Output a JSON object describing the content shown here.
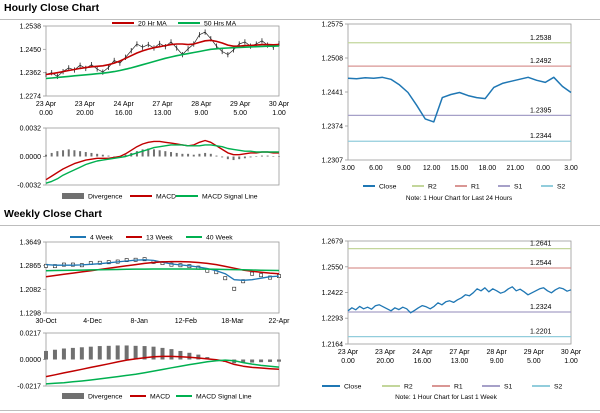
{
  "sections": {
    "hourly_title": "Hourly Close Chart",
    "weekly_title": "Weekly Close Chart"
  },
  "colors": {
    "ma_red": "#c00000",
    "ma_green": "#00b050",
    "price_black": "#222222",
    "blue_line": "#1f77b4",
    "macd_red": "#c00000",
    "signal_green": "#00b050",
    "bar_gray": "#707070",
    "r2": "#c3d69b",
    "r1": "#d99694",
    "s1": "#a6a0c8",
    "s2": "#92cddc",
    "frame": "#9a9a9a"
  },
  "chart_data": [
    {
      "id": "hourly-price",
      "type": "line",
      "title": "Hourly Close Chart",
      "legend": [
        "20 Hr MA",
        "50 Hrs MA"
      ],
      "y_ticks": [
        "1.2538",
        "1.2450",
        "1.2362",
        "1.2274"
      ],
      "ylim": [
        1.2274,
        1.2538
      ],
      "x_ticks": [
        "23 Apr\n0.00",
        "23 Apr\n20.00",
        "24 Apr\n16.00",
        "27 Apr\n13.00",
        "28 Apr\n9.00",
        "29 Apr\n5.00",
        "30 Apr\n1.00"
      ],
      "series": [
        {
          "name": "Price",
          "values": [
            1.2355,
            1.2362,
            1.2348,
            1.2366,
            1.238,
            1.2372,
            1.239,
            1.2378,
            1.2392,
            1.2376,
            1.2364,
            1.2382,
            1.2408,
            1.2398,
            1.242,
            1.2445,
            1.247,
            1.2458,
            1.2468,
            1.2455,
            1.2472,
            1.246,
            1.2478,
            1.2455,
            1.243,
            1.2452,
            1.247,
            1.2505,
            1.2515,
            1.249,
            1.2462,
            1.2442,
            1.243,
            1.2448,
            1.247,
            1.2478,
            1.2462,
            1.247,
            1.2482,
            1.2466,
            1.2458,
            1.2472
          ]
        },
        {
          "name": "20 Hr MA",
          "values": [
            1.2355,
            1.2358,
            1.2362,
            1.2366,
            1.237,
            1.2374,
            1.2378,
            1.2381,
            1.2384,
            1.2386,
            1.2388,
            1.2392,
            1.2398,
            1.2406,
            1.2416,
            1.2426,
            1.2436,
            1.2444,
            1.2451,
            1.2456,
            1.246,
            1.2464,
            1.2468,
            1.247,
            1.247,
            1.2468,
            1.247,
            1.2476,
            1.2482,
            1.2484,
            1.248,
            1.2474,
            1.2466,
            1.2462,
            1.2462,
            1.2464,
            1.2465,
            1.2466,
            1.2468,
            1.2468,
            1.2467,
            1.2468
          ]
        },
        {
          "name": "50 Hrs MA",
          "values": [
            1.234,
            1.2342,
            1.2344,
            1.2346,
            1.2348,
            1.235,
            1.2352,
            1.2354,
            1.2356,
            1.2358,
            1.236,
            1.2363,
            1.2366,
            1.237,
            1.2375,
            1.238,
            1.2386,
            1.2392,
            1.2398,
            1.2404,
            1.241,
            1.2416,
            1.2421,
            1.2426,
            1.243,
            1.2434,
            1.2438,
            1.2442,
            1.2446,
            1.245,
            1.2452,
            1.2454,
            1.2455,
            1.2456,
            1.2457,
            1.2458,
            1.2459,
            1.246,
            1.2461,
            1.2462,
            1.2462,
            1.2463
          ]
        }
      ]
    },
    {
      "id": "hourly-macd",
      "type": "bar",
      "y_ticks": [
        "0.0032",
        "0.0000",
        "-0.0032"
      ],
      "ylim": [
        -0.0032,
        0.0032
      ],
      "legend": [
        "Divergence",
        "MACD",
        "MACD Signal Line"
      ],
      "divergence": [
        0.0002,
        0.0004,
        0.0006,
        0.0007,
        0.0008,
        0.0007,
        0.0006,
        0.0005,
        0.0004,
        0.0003,
        0.0002,
        0.0001,
        0.0,
        -0.0001,
        0.0002,
        0.0004,
        0.0006,
        0.0008,
        0.0009,
        0.0008,
        0.0007,
        0.0006,
        0.0005,
        0.0004,
        0.0003,
        0.0003,
        0.0002,
        0.0003,
        0.0004,
        0.0003,
        0.0001,
        -0.0001,
        -0.0003,
        -0.0004,
        -0.0003,
        -0.0002,
        -0.0001,
        0.0,
        0.0001,
        0.0001,
        0.0,
        0.0
      ],
      "series": [
        {
          "name": "MACD",
          "values": [
            -0.0026,
            -0.0022,
            -0.0018,
            -0.0014,
            -0.0011,
            -0.0008,
            -0.0006,
            -0.0004,
            -0.0003,
            -0.0002,
            -0.0002,
            -0.0002,
            -0.0001,
            0.0,
            0.0003,
            0.0007,
            0.0011,
            0.0014,
            0.0016,
            0.0017,
            0.0017,
            0.0016,
            0.0015,
            0.0014,
            0.0013,
            0.0012,
            0.0013,
            0.0016,
            0.0018,
            0.0016,
            0.0012,
            0.0008,
            0.0004,
            0.0002,
            0.0002,
            0.0003,
            0.0004,
            0.0004,
            0.0005,
            0.0005,
            0.0004,
            0.0004
          ]
        },
        {
          "name": "MACD Signal Line",
          "values": [
            -0.003,
            -0.0028,
            -0.0025,
            -0.0021,
            -0.0018,
            -0.0015,
            -0.0012,
            -0.0009,
            -0.0007,
            -0.0005,
            -0.0004,
            -0.0003,
            -0.0002,
            -0.0001,
            0.0,
            0.0002,
            0.0004,
            0.0006,
            0.0008,
            0.001,
            0.0011,
            0.0012,
            0.0013,
            0.0013,
            0.0013,
            0.0012,
            0.0012,
            0.0012,
            0.0013,
            0.0013,
            0.0012,
            0.0011,
            0.0009,
            0.0008,
            0.0007,
            0.0006,
            0.0006,
            0.0005,
            0.0005,
            0.0005,
            0.0005,
            0.0005
          ]
        }
      ]
    },
    {
      "id": "hourly-close-24h",
      "type": "line",
      "y_ticks": [
        "1.2575",
        "1.2508",
        "1.2441",
        "1.2374",
        "1.2307"
      ],
      "ylim": [
        1.2307,
        1.2575
      ],
      "x_ticks": [
        "3.00",
        "6.00",
        "9.00",
        "12.00",
        "15.00",
        "18.00",
        "21.00",
        "0.00",
        "3.00"
      ],
      "levels": [
        {
          "name": "R2",
          "value": 1.2538,
          "label": "1.2538"
        },
        {
          "name": "R1",
          "value": 1.2492,
          "label": "1.2492"
        },
        {
          "name": "S1",
          "value": 1.2395,
          "label": "1.2395"
        },
        {
          "name": "S2",
          "value": 1.2344,
          "label": "1.2344"
        }
      ],
      "legend": [
        "Close",
        "R2",
        "R1",
        "S1",
        "S2"
      ],
      "note": "Note: 1 Hour Chart for Last 24 Hours",
      "series": [
        {
          "name": "Close",
          "values": [
            1.2468,
            1.2467,
            1.2469,
            1.2468,
            1.247,
            1.2466,
            1.2455,
            1.244,
            1.2415,
            1.2388,
            1.2382,
            1.243,
            1.2436,
            1.244,
            1.2434,
            1.243,
            1.2428,
            1.245,
            1.2458,
            1.2462,
            1.2466,
            1.247,
            1.2464,
            1.246,
            1.247,
            1.2452,
            1.244
          ]
        }
      ]
    },
    {
      "id": "weekly-price",
      "type": "line",
      "title": "Weekly Close Chart",
      "legend": [
        "4 Week",
        "13 Week",
        "40 Week"
      ],
      "y_ticks": [
        "1.3649",
        "1.2865",
        "1.2082",
        "1.1298"
      ],
      "ylim": [
        1.1298,
        1.3649
      ],
      "x_ticks": [
        "30-Oct",
        "4-Dec",
        "8-Jan",
        "12-Feb",
        "18-Mar",
        "22-Apr"
      ],
      "series": [
        {
          "name": "Price",
          "values": [
            1.286,
            1.285,
            1.29,
            1.29,
            1.288,
            1.295,
            1.296,
            1.298,
            1.3,
            1.305,
            1.306,
            1.308,
            1.299,
            1.295,
            1.29,
            1.288,
            1.285,
            1.28,
            1.27,
            1.265,
            1.245,
            1.21,
            1.235,
            1.26,
            1.255,
            1.247,
            1.252
          ]
        },
        {
          "name": "4 Week",
          "values": [
            1.29,
            1.288,
            1.288,
            1.288,
            1.289,
            1.291,
            1.293,
            1.296,
            1.299,
            1.302,
            1.305,
            1.306,
            1.304,
            1.298,
            1.292,
            1.289,
            1.286,
            1.282,
            1.277,
            1.27,
            1.26,
            1.24,
            1.238,
            1.24,
            1.245,
            1.25,
            1.252
          ]
        },
        {
          "name": "13 Week",
          "values": [
            1.25,
            1.254,
            1.258,
            1.262,
            1.266,
            1.27,
            1.274,
            1.278,
            1.282,
            1.286,
            1.29,
            1.294,
            1.297,
            1.299,
            1.3,
            1.3,
            1.299,
            1.297,
            1.294,
            1.29,
            1.284,
            1.278,
            1.272,
            1.268,
            1.265,
            1.262,
            1.26
          ]
        },
        {
          "name": "40 Week",
          "values": [
            1.27,
            1.2705,
            1.271,
            1.2715,
            1.272,
            1.2725,
            1.273,
            1.2735,
            1.274,
            1.2745,
            1.275,
            1.2752,
            1.2754,
            1.2755,
            1.2756,
            1.2756,
            1.2755,
            1.2753,
            1.275,
            1.2745,
            1.274,
            1.2734,
            1.2728,
            1.2722,
            1.2716,
            1.271,
            1.2705
          ]
        }
      ]
    },
    {
      "id": "weekly-macd",
      "type": "bar",
      "y_ticks": [
        "0.0217",
        "0.0000",
        "-0.0217"
      ],
      "ylim": [
        -0.0217,
        0.0217
      ],
      "legend": [
        "Divergence",
        "MACD",
        "MACD Signal Line"
      ],
      "divergence": [
        0.007,
        0.008,
        0.009,
        0.0095,
        0.01,
        0.0105,
        0.011,
        0.0112,
        0.0115,
        0.0115,
        0.0112,
        0.011,
        0.0105,
        0.0095,
        0.0085,
        0.007,
        0.0055,
        0.004,
        0.002,
        0.0,
        -0.002,
        -0.003,
        -0.0028,
        -0.0025,
        -0.0022,
        -0.002,
        -0.0018
      ],
      "series": [
        {
          "name": "MACD",
          "values": [
            -0.014,
            -0.0125,
            -0.011,
            -0.0095,
            -0.008,
            -0.0065,
            -0.005,
            -0.0035,
            -0.002,
            -0.0005,
            0.0005,
            0.0015,
            0.0022,
            0.0025,
            0.0025,
            0.0022,
            0.0018,
            0.0012,
            0.0005,
            -0.0002,
            -0.0015,
            -0.004,
            -0.0055,
            -0.0065,
            -0.007,
            -0.0075,
            -0.008
          ]
        },
        {
          "name": "MACD Signal Line",
          "values": [
            -0.02,
            -0.0195,
            -0.019,
            -0.0183,
            -0.0176,
            -0.0168,
            -0.0159,
            -0.015,
            -0.014,
            -0.013,
            -0.012,
            -0.0108,
            -0.0095,
            -0.0082,
            -0.0068,
            -0.0055,
            -0.0042,
            -0.003,
            -0.0018,
            -0.001,
            -0.0005,
            -0.001,
            -0.0025,
            -0.0038,
            -0.0048,
            -0.0055,
            -0.0062
          ]
        }
      ]
    },
    {
      "id": "weekly-close-1w",
      "type": "line",
      "y_ticks": [
        "1.2679",
        "1.2550",
        "1.2422",
        "1.2293",
        "1.2164"
      ],
      "ylim": [
        1.2164,
        1.2679
      ],
      "x_ticks": [
        "23 Apr\n0.00",
        "23 Apr\n20.00",
        "24 Apr\n16.00",
        "27 Apr\n13.00",
        "28 Apr\n9.00",
        "29 Apr\n5.00",
        "30 Apr\n1.00"
      ],
      "levels": [
        {
          "name": "R2",
          "value": 1.2641,
          "label": "1.2641"
        },
        {
          "name": "R1",
          "value": 1.2544,
          "label": "1.2544"
        },
        {
          "name": "S1",
          "value": 1.2324,
          "label": "1.2324"
        },
        {
          "name": "S2",
          "value": 1.2201,
          "label": "1.2201"
        }
      ],
      "legend": [
        "Close",
        "R2",
        "R1",
        "S1",
        "S2"
      ],
      "note": "Note: 1 Hour Chart for Last 1 Week",
      "series": [
        {
          "name": "Close",
          "values": [
            1.233,
            1.2345,
            1.2335,
            1.2352,
            1.234,
            1.2348,
            1.2338,
            1.2355,
            1.236,
            1.235,
            1.234,
            1.233,
            1.2345,
            1.2336,
            1.2348,
            1.234,
            1.232,
            1.2332,
            1.2345,
            1.2356,
            1.235,
            1.234,
            1.2352,
            1.237,
            1.236,
            1.2375,
            1.238,
            1.2372,
            1.2385,
            1.2395,
            1.241,
            1.2405,
            1.242,
            1.244,
            1.243,
            1.2445,
            1.2425,
            1.244,
            1.243,
            1.2418,
            1.2425,
            1.244,
            1.245,
            1.243,
            1.2438,
            1.2425,
            1.241,
            1.242,
            1.243,
            1.244,
            1.2445,
            1.243,
            1.242,
            1.2435,
            1.2445,
            1.244,
            1.2428,
            1.2435
          ]
        }
      ]
    }
  ]
}
